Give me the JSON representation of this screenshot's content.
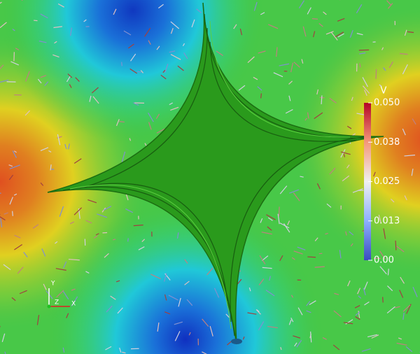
{
  "colorbar": {
    "title": "V",
    "range": [
      0,
      0.05
    ],
    "ticks": [
      {
        "value": 0,
        "label": "0.00"
      },
      {
        "value": 0.0125,
        "label": "0.013"
      },
      0.025,
      {
        "value": 0.0375,
        "label": "0.038"
      },
      {
        "value": 0.05,
        "label": "0.050"
      }
    ]
  },
  "axes_triad": {
    "labels": [
      "Y",
      "Z",
      "X"
    ]
  }
}
